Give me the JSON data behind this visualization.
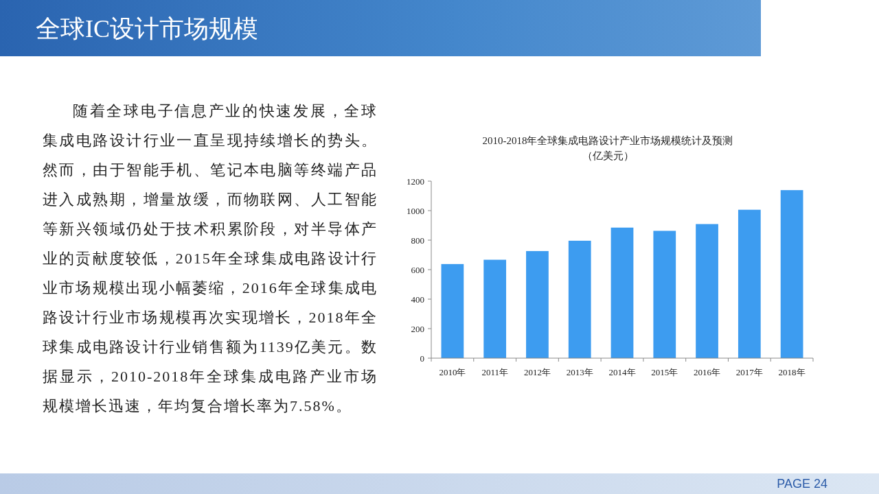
{
  "chart_data": {
    "type": "bar",
    "title": "2010-2018年全球集成电路设计产业市场规模统计及预测",
    "subtitle": "（亿美元）",
    "categories": [
      "2010年",
      "2011年",
      "2012年",
      "2013年",
      "2014年",
      "2015年",
      "2016年",
      "2017年",
      "2018年"
    ],
    "values": [
      638,
      667,
      726,
      796,
      885,
      863,
      909,
      1006,
      1139
    ],
    "color": "#3d9cf0",
    "ylim": [
      0,
      1200
    ],
    "yticks": [
      0,
      200,
      400,
      600,
      800,
      1000,
      1200
    ],
    "annotations": [
      "全球IC设计市场规模",
      "随着全球电子信息产业的快速发展，全球集成电路设计行业一直呈现持续增长的势头。然而，由于智能手机、笔记本电脑等终端产品进入成熟期，增量放缓，而物联网、人工智能等新兴领域仍处于技术积累阶段，对半导体产业的贡献度较低，2015年全球集成电路设计行业市场规模出现小幅萎缩，2016年全球集成电路设计行业市场规模再次实现增长，2018年全球集成电路设计行业销售额为1139亿美元。数据显示，2010-2018年全球集成电路产业市场规模增长迅速，年均复合增长率为7.58%。",
      "PAGE 24"
    ]
  }
}
